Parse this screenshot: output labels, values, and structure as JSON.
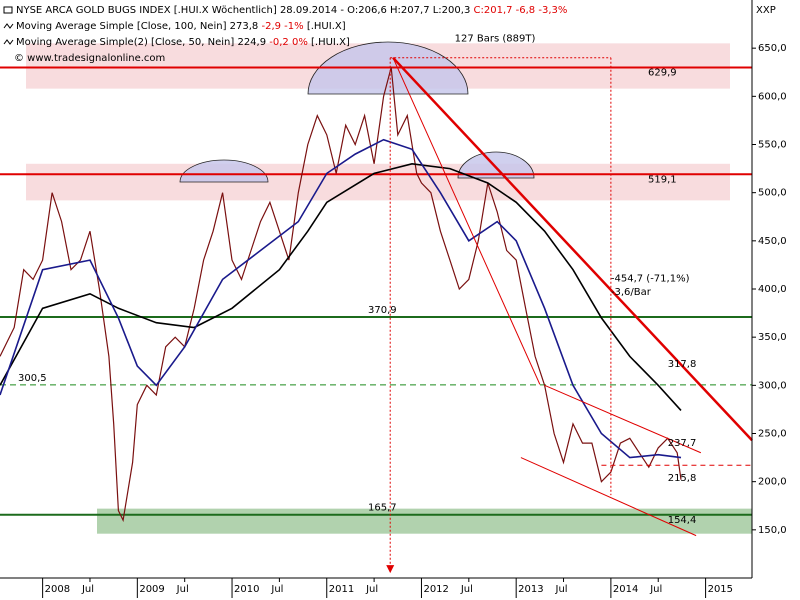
{
  "chart_data": {
    "type": "line",
    "symbol": "XXP",
    "header": [
      {
        "text": "NYSE ARCA GOLD BUGS INDEX [.HUI.X  Wöchentlich] 28.09.2014 - O:206,6 H:207,7 L:200,3",
        "change": "C:201,7 -6,8 -3,3%",
        "tail": ""
      },
      {
        "text": "Moving Average Simple [Close, 100, Nein] 273,8",
        "change": "-2,9 -1%",
        "tail": "[.HUI.X]"
      },
      {
        "text": "Moving Average Simple(2) [Close, 50, Nein] 224,9",
        "change": "-0,2 0%",
        "tail": "[.HUI.X]"
      }
    ],
    "copyright": "© www.tradesignalonline.com",
    "xlim": [
      2007.55,
      2015.49
    ],
    "ylim": [
      100,
      700
    ],
    "xticks": [
      2008,
      {
        "value": 2008.5,
        "label": "Jul"
      },
      2009,
      {
        "value": 2009.5,
        "label": "Jul"
      },
      2010,
      {
        "value": 2010.5,
        "label": "Jul"
      },
      2011,
      {
        "value": 2011.5,
        "label": "Jul"
      },
      2012,
      {
        "value": 2012.5,
        "label": "Jul"
      },
      2013,
      {
        "value": 2013.5,
        "label": "Jul"
      },
      2014,
      {
        "value": 2014.5,
        "label": "Jul"
      },
      2015
    ],
    "yticks": [
      {
        "value": 150,
        "label": "150,0"
      },
      {
        "value": 200,
        "label": "200,0"
      },
      {
        "value": 250,
        "label": "250,0"
      },
      {
        "value": 300,
        "label": "300,0"
      },
      {
        "value": 350,
        "label": "350,0"
      },
      {
        "value": 400,
        "label": "400,0"
      },
      {
        "value": 450,
        "label": "450,0"
      },
      {
        "value": 500,
        "label": "500,0"
      },
      {
        "value": 550,
        "label": "550,0"
      },
      {
        "value": 600,
        "label": "600,0"
      },
      {
        "value": 650,
        "label": "650,0"
      }
    ],
    "zones": [
      {
        "from": 608,
        "to": 655,
        "color": "#f6d3d6"
      },
      {
        "from": 492,
        "to": 530,
        "color": "#f6d3d6"
      },
      {
        "from": 146,
        "to": 172,
        "color": "#9ec79a"
      }
    ],
    "levels": [
      {
        "value": 629.9,
        "label": "629,9",
        "color": "#e00000",
        "dashed": false
      },
      {
        "value": 519.1,
        "label": "519,1",
        "color": "#e00000",
        "dashed": false
      },
      {
        "value": 370.9,
        "label": "370,9",
        "color": "#1c6b1c",
        "dashed": false
      },
      {
        "value": 300.5,
        "label": "300,5",
        "color": "#1c8b1c",
        "dashed": true
      },
      {
        "value": 165.7,
        "label": "165,7",
        "color": "#1c6b1c",
        "dashed": false
      }
    ],
    "trendlines": [
      {
        "x": [
          2011.7,
          2015.49
        ],
        "y": [
          640,
          243
        ],
        "color": "#e00000",
        "width": 2.5,
        "dashed": false
      },
      {
        "x": [
          2011.7,
          2013.25
        ],
        "y": [
          640,
          301
        ],
        "color": "#e00000",
        "width": 1,
        "dashed": false
      },
      {
        "x": [
          2013.3,
          2014.95
        ],
        "y": [
          300,
          230
        ],
        "color": "#e00000",
        "width": 1,
        "dashed": false
      },
      {
        "x": [
          2013.05,
          2014.9
        ],
        "y": [
          225,
          144
        ],
        "color": "#e00000",
        "width": 1,
        "dashed": false
      },
      {
        "x": [
          2013.9,
          2015.49
        ],
        "y": [
          217,
          217
        ],
        "color": "#e00000",
        "width": 1,
        "dashed": true
      },
      {
        "x": [
          2011.67,
          2014.0
        ],
        "y": [
          640,
          640
        ],
        "color": "#e00000",
        "width": 1,
        "dashed": true
      },
      {
        "x": [
          2014.0,
          2014.0
        ],
        "y": [
          640,
          186
        ],
        "color": "#e00000",
        "width": 1,
        "dashed": true
      },
      {
        "x": [
          2011.67,
          2011.67
        ],
        "y": [
          640,
          105
        ],
        "color": "#e00000",
        "width": 1,
        "dashed": true
      }
    ],
    "annotations": [
      {
        "text": "127 Bars (889T)",
        "x": 2012.35,
        "y": 660,
        "color": "#e00000"
      },
      {
        "text": "-454,7 (-71,1%)",
        "x": 2014.0,
        "y": 411,
        "color": "#c00000"
      },
      {
        "text": "-3,6/Bar",
        "x": 2014.0,
        "y": 397,
        "color": "#c00000"
      },
      {
        "text": "317,8",
        "x": 2014.6,
        "y": 322,
        "color": "#c00000"
      },
      {
        "text": "237,7",
        "x": 2014.6,
        "y": 240,
        "color": "#c00000"
      },
      {
        "text": "215,8",
        "x": 2014.6,
        "y": 204,
        "color": "#c00000"
      },
      {
        "text": "154,4",
        "x": 2014.6,
        "y": 160,
        "color": "#c00000"
      }
    ],
    "series": [
      {
        "name": "NYSE ARCA GOLD BUGS INDEX",
        "color": "#7a1010",
        "x": [
          2007.55,
          2007.7,
          2007.8,
          2007.9,
          2008.0,
          2008.1,
          2008.2,
          2008.3,
          2008.4,
          2008.5,
          2008.6,
          2008.7,
          2008.75,
          2008.8,
          2008.85,
          2008.95,
          2009.0,
          2009.1,
          2009.2,
          2009.3,
          2009.4,
          2009.5,
          2009.6,
          2009.7,
          2009.8,
          2009.9,
          2010.0,
          2010.1,
          2010.2,
          2010.3,
          2010.4,
          2010.5,
          2010.6,
          2010.7,
          2010.8,
          2010.9,
          2011.0,
          2011.1,
          2011.2,
          2011.3,
          2011.4,
          2011.5,
          2011.6,
          2011.68,
          2011.75,
          2011.85,
          2011.95,
          2012.0,
          2012.1,
          2012.2,
          2012.3,
          2012.4,
          2012.5,
          2012.6,
          2012.7,
          2012.8,
          2012.9,
          2013.0,
          2013.1,
          2013.2,
          2013.3,
          2013.4,
          2013.5,
          2013.6,
          2013.7,
          2013.8,
          2013.9,
          2014.0,
          2014.1,
          2014.2,
          2014.3,
          2014.4,
          2014.5,
          2014.6,
          2014.7,
          2014.74
        ],
        "values": [
          330,
          360,
          420,
          410,
          430,
          500,
          470,
          420,
          430,
          460,
          400,
          330,
          260,
          170,
          160,
          220,
          280,
          300,
          290,
          340,
          350,
          340,
          380,
          430,
          460,
          500,
          430,
          410,
          440,
          470,
          490,
          460,
          430,
          500,
          550,
          580,
          560,
          520,
          570,
          550,
          580,
          530,
          600,
          630,
          560,
          580,
          520,
          510,
          500,
          460,
          430,
          400,
          410,
          450,
          510,
          480,
          440,
          430,
          380,
          330,
          300,
          250,
          220,
          260,
          240,
          240,
          200,
          210,
          240,
          245,
          230,
          215,
          235,
          245,
          230,
          202
        ]
      },
      {
        "name": "Moving Average Simple 100",
        "color": "#000000",
        "x": [
          2007.55,
          2008.0,
          2008.5,
          2008.8,
          2009.2,
          2009.6,
          2010.0,
          2010.5,
          2010.8,
          2011.0,
          2011.5,
          2011.9,
          2012.3,
          2012.7,
          2013.0,
          2013.3,
          2013.6,
          2013.9,
          2014.2,
          2014.5,
          2014.74
        ],
        "values": [
          300,
          380,
          395,
          380,
          365,
          360,
          380,
          420,
          460,
          490,
          520,
          530,
          525,
          510,
          490,
          460,
          420,
          370,
          330,
          300,
          274
        ]
      },
      {
        "name": "Moving Average Simple(2) 50",
        "color": "#1a1a8c",
        "x": [
          2007.55,
          2008.0,
          2008.5,
          2008.8,
          2009.0,
          2009.2,
          2009.5,
          2009.9,
          2010.3,
          2010.7,
          2011.0,
          2011.3,
          2011.6,
          2011.9,
          2012.2,
          2012.5,
          2012.8,
          2013.0,
          2013.3,
          2013.6,
          2013.9,
          2014.2,
          2014.5,
          2014.74
        ],
        "values": [
          290,
          420,
          430,
          370,
          320,
          300,
          340,
          410,
          440,
          470,
          520,
          540,
          555,
          545,
          500,
          450,
          470,
          450,
          380,
          300,
          250,
          225,
          228,
          225
        ]
      }
    ]
  }
}
